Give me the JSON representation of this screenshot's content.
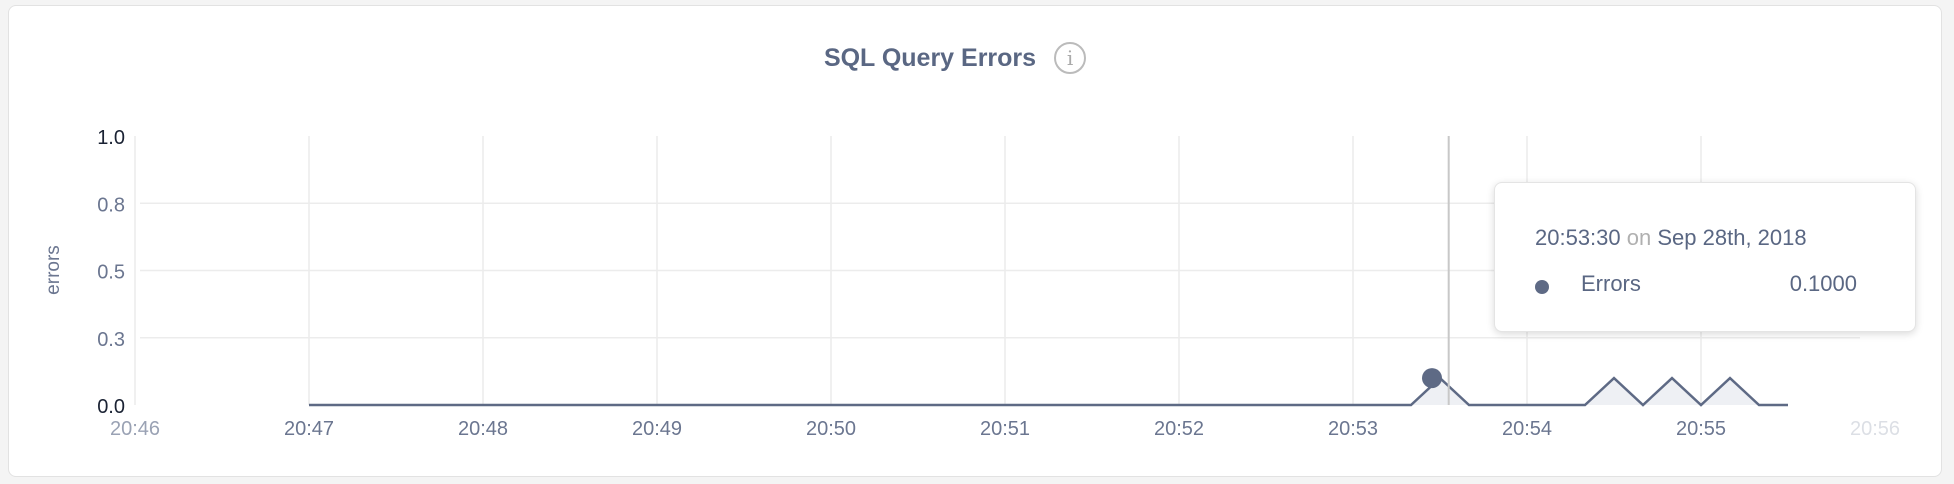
{
  "chart_data": {
    "type": "area",
    "title": "SQL Query Errors",
    "info_icon": "info-icon",
    "ylabel": "errors",
    "xlabel": "",
    "ylim": [
      0,
      1
    ],
    "yticks": [
      {
        "value": 0,
        "label": "0.0"
      },
      {
        "value": 0.25,
        "label": "0.3"
      },
      {
        "value": 0.5,
        "label": "0.5"
      },
      {
        "value": 0.75,
        "label": "0.8"
      },
      {
        "value": 1,
        "label": "1.0"
      }
    ],
    "xlim": [
      "20:46:00",
      "20:56:00"
    ],
    "xticks": [
      "20:46",
      "20:47",
      "20:48",
      "20:49",
      "20:50",
      "20:51",
      "20:52",
      "20:53",
      "20:54",
      "20:55",
      "20:56"
    ],
    "grid": true,
    "colors": {
      "line": "#5e6a85",
      "fill": "#eef0f4",
      "grid": "#ececec"
    },
    "series": [
      {
        "name": "Errors",
        "points": [
          [
            "20:47:00",
            0
          ],
          [
            "20:53:20",
            0
          ],
          [
            "20:53:30",
            0.1
          ],
          [
            "20:53:40",
            0
          ],
          [
            "20:54:20",
            0
          ],
          [
            "20:54:30",
            0.1
          ],
          [
            "20:54:40",
            0
          ],
          [
            "20:54:50",
            0.1
          ],
          [
            "20:55:00",
            0
          ],
          [
            "20:55:10",
            0.1
          ],
          [
            "20:55:20",
            0
          ],
          [
            "20:55:30",
            0
          ]
        ]
      }
    ],
    "tooltip": {
      "time": "20:53:30",
      "on": "on",
      "date": "Sep 28th, 2018",
      "series": "Errors",
      "value": "0.1000"
    }
  }
}
